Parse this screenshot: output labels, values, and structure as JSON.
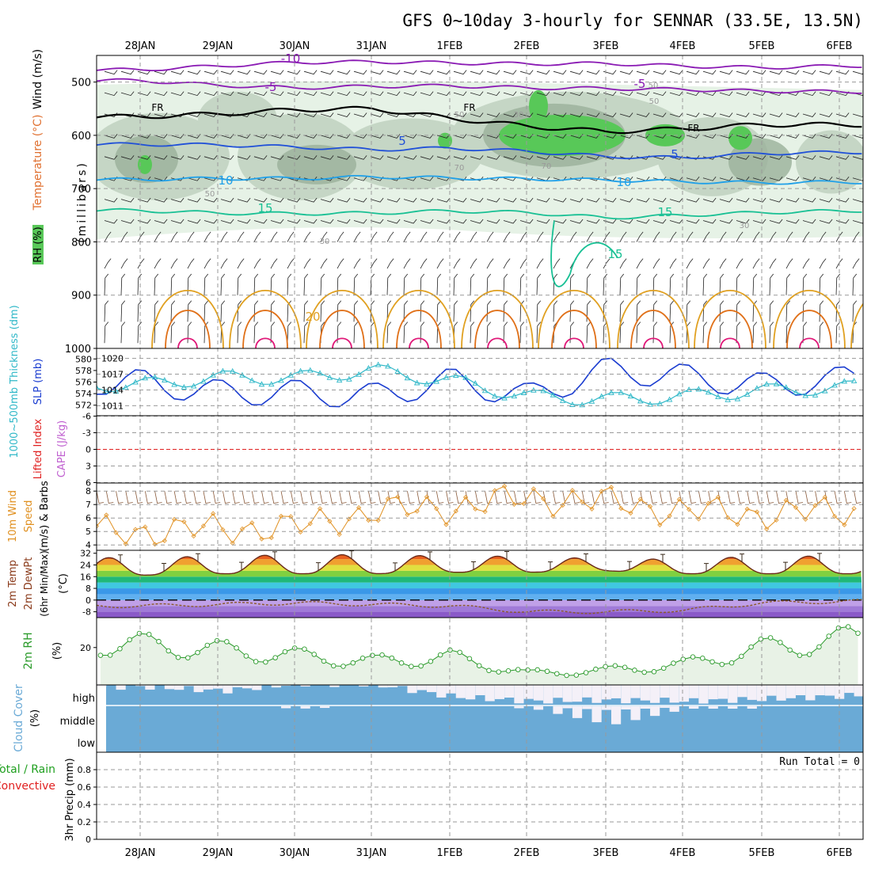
{
  "title": "GFS 0~10day 3-hourly for SENNAR (33.5E, 13.5N)",
  "dates": [
    "28JAN",
    "29JAN",
    "30JAN",
    "31JAN",
    "1FEB",
    "2FEB",
    "3FEB",
    "4FEB",
    "5FEB",
    "6FEB"
  ],
  "colors": {
    "frame": "#000000",
    "grid": "#9a9a9a",
    "rh_light": "#e6f2e6",
    "rh_mid": "#c5d6c5",
    "rh_dark": "#9ab09a",
    "rh_green": "#58c858",
    "wind_contour": "#8a1ab4",
    "temp_fr": "#000000",
    "temp_5": "#2050d8",
    "temp_10": "#20a0e8",
    "temp_15": "#18c094",
    "temp_20": "#e0a020",
    "temp_25": "#e07018",
    "temp_30": "#e01878",
    "slp": "#1a3cd0",
    "thickness": "#30b8c8",
    "lifted_index": "#e02020",
    "cape": "#c060d0",
    "wind_speed": "#e09020",
    "dewpt": "#8a5a2a",
    "rh2m": "#2a9a2a",
    "cloud": "#6aaad6",
    "precip_total": "#20a020",
    "precip_conv": "#e02020"
  },
  "panels": {
    "upper": {
      "ylabel_units": "(millibars)",
      "label_wind": "Wind (m/s)",
      "label_temp": "Temperature (°C)",
      "label_rh": "RH (%)",
      "yticks": [
        500,
        600,
        700,
        800,
        900,
        1000
      ],
      "contour_labels": [
        "-10",
        "-5",
        "-5",
        "FR",
        "FR",
        "FR",
        "5",
        "5",
        "10",
        "10",
        "15",
        "15",
        "15",
        "20",
        "30",
        "30",
        "30",
        "50",
        "50",
        "50",
        "50",
        "70",
        "70"
      ]
    },
    "slp": {
      "label_thick": "1000~500mb Thickness (dm)",
      "label_slp": "SLP (mb)",
      "yticks_left": [
        572,
        574,
        576,
        578,
        580
      ],
      "yticks_right": [
        1011,
        1014,
        1017,
        1020
      ]
    },
    "li": {
      "label_li": "Lifted Index",
      "label_cape": "CAPE (J/kg)",
      "yticks": [
        "-6",
        "-3",
        "0",
        "3",
        "6"
      ]
    },
    "wind10": {
      "label_1": "10m Wind",
      "label_2": "Speed",
      "label_3": "(m/s) & Barbs",
      "yticks": [
        4,
        5,
        6,
        7,
        8
      ]
    },
    "temp2m": {
      "label_1": "2m Temp",
      "label_2": "2m DewPt",
      "label_3": "(6hr Min/Max)",
      "unit": "(°C)",
      "yticks": [
        "32",
        "24",
        "16",
        "8",
        "0",
        "-8"
      ]
    },
    "rh2m": {
      "label": "2m RH",
      "unit": "(%)",
      "yticks": [
        "20"
      ]
    },
    "cloud": {
      "label": "Cloud Cover",
      "unit": "(%)",
      "levels": [
        "high",
        "middle",
        "low"
      ]
    },
    "precip": {
      "label_total": "Total / Rain",
      "label_conv": "Convective",
      "label_axis": "3hr Precip (mm)",
      "run_total": "Run Total = 0",
      "yticks": [
        "0",
        "0.2",
        "0.4",
        "0.6",
        "0.8"
      ]
    }
  },
  "chart_data": [
    {
      "type": "line",
      "title": "GFS 0~10day 3-hourly for SENNAR (33.5E, 13.5N)",
      "xlabel": "",
      "ylabel": "(millibars)",
      "categories": [
        "28JAN",
        "29JAN",
        "30JAN",
        "31JAN",
        "1FEB",
        "2FEB",
        "3FEB",
        "4FEB",
        "5FEB",
        "6FEB"
      ],
      "y_inverted": true,
      "ylim": [
        450,
        1000
      ],
      "series": [
        {
          "name": "-10",
          "values": [
            477,
            470,
            463,
            462,
            464,
            466,
            465,
            470,
            473,
            470
          ]
        },
        {
          "name": "-5",
          "values": [
            497,
            506,
            511,
            508,
            507,
            511,
            512,
            514,
            517,
            518
          ]
        },
        {
          "name": "FR",
          "values": [
            565,
            560,
            552,
            550,
            568,
            583,
            593,
            588,
            580,
            580
          ]
        },
        {
          "name": "5",
          "values": [
            617,
            618,
            622,
            627,
            624,
            630,
            640,
            642,
            634,
            632
          ]
        },
        {
          "name": "10",
          "values": [
            683,
            681,
            681,
            678,
            680,
            682,
            684,
            687,
            689,
            688
          ]
        },
        {
          "name": "15",
          "values": [
            741,
            746,
            747,
            746,
            742,
            745,
            755,
            750,
            745,
            742
          ]
        }
      ]
    },
    {
      "type": "line",
      "title": "",
      "xlabel": "",
      "ylabel": "SLP (mb)",
      "categories": [
        "28JAN",
        "29JAN",
        "30JAN",
        "31JAN",
        "1FEB",
        "2FEB",
        "3FEB",
        "4FEB",
        "5FEB",
        "6FEB"
      ],
      "ylim": [
        1011,
        1020
      ],
      "series": [
        {
          "name": "SLP (mb)",
          "values": [
            1015.5,
            1013.5,
            1013.5,
            1012.8,
            1015.8,
            1012.7,
            1017.8,
            1016.5,
            1014.8,
            1016.0
          ]
        },
        {
          "name": "1000~500mb Thickness (dm)",
          "values": [
            575.5,
            576.8,
            576.7,
            578.0,
            576.2,
            573.5,
            573.0,
            573.5,
            574.5,
            575.0
          ]
        }
      ]
    },
    {
      "type": "line",
      "title": "",
      "xlabel": "",
      "ylabel": "Lifted Index",
      "categories": [
        "28JAN",
        "29JAN",
        "30JAN",
        "31JAN",
        "1FEB",
        "2FEB",
        "3FEB",
        "4FEB",
        "5FEB",
        "6FEB"
      ],
      "ylim": [
        6,
        -6
      ],
      "series": [
        {
          "name": "CAPE (J/kg)",
          "values": [
            0,
            0,
            0,
            0,
            0,
            0,
            0,
            0,
            0,
            0
          ]
        }
      ]
    },
    {
      "type": "line",
      "title": "",
      "xlabel": "",
      "ylabel": "(m/s) & Barbs",
      "categories": [
        "28JAN",
        "29JAN",
        "30JAN",
        "31JAN",
        "1FEB",
        "2FEB",
        "3FEB",
        "4FEB",
        "5FEB",
        "6FEB"
      ],
      "ylim": [
        3.6,
        8.6
      ],
      "series": [
        {
          "name": "10m Wind Speed",
          "values": [
            5.0,
            5.2,
            5.3,
            6.5,
            6.8,
            7.5,
            7.2,
            6.5,
            6.3,
            6.5
          ]
        }
      ]
    },
    {
      "type": "area",
      "title": "",
      "xlabel": "",
      "ylabel": "(°C)",
      "categories": [
        "28JAN",
        "29JAN",
        "30JAN",
        "31JAN",
        "1FEB",
        "2FEB",
        "3FEB",
        "4FEB",
        "5FEB",
        "6FEB"
      ],
      "ylim": [
        -12,
        34
      ],
      "series": [
        {
          "name": "2m Temp max",
          "values": [
            29,
            30,
            31,
            31,
            30,
            30,
            28,
            28,
            30,
            30
          ]
        },
        {
          "name": "2m Temp min",
          "values": [
            17,
            18,
            18,
            18,
            19,
            19,
            20,
            18,
            18,
            18
          ]
        },
        {
          "name": "2m DewPt",
          "values": [
            -4,
            -3,
            -2,
            -3,
            -4,
            -8,
            -8,
            -7,
            -2,
            -1
          ]
        }
      ]
    },
    {
      "type": "area",
      "title": "",
      "xlabel": "",
      "ylabel": "(%)",
      "categories": [
        "28JAN",
        "29JAN",
        "30JAN",
        "31JAN",
        "1FEB",
        "2FEB",
        "3FEB",
        "4FEB",
        "5FEB",
        "6FEB"
      ],
      "ylim": [
        0,
        36
      ],
      "series": [
        {
          "name": "2m RH",
          "values": [
            28,
            24,
            20,
            16,
            19,
            8,
            10,
            14,
            25,
            31
          ]
        }
      ]
    },
    {
      "type": "bar",
      "title": "",
      "xlabel": "",
      "ylabel": "(%)",
      "categories": [
        "28JAN",
        "29JAN",
        "30JAN",
        "31JAN",
        "1FEB",
        "2FEB",
        "3FEB",
        "4FEB",
        "5FEB",
        "6FEB"
      ],
      "series": [
        {
          "name": "high",
          "values": [
            80,
            60,
            95,
            90,
            30,
            10,
            15,
            10,
            20,
            35
          ]
        },
        {
          "name": "middle",
          "values": [
            0,
            0,
            5,
            0,
            0,
            5,
            40,
            5,
            5,
            0
          ]
        },
        {
          "name": "low",
          "values": [
            0,
            0,
            0,
            0,
            0,
            0,
            0,
            0,
            0,
            0
          ]
        }
      ]
    },
    {
      "type": "bar",
      "title": "",
      "xlabel": "",
      "ylabel": "3hr Precip (mm)",
      "categories": [
        "28JAN",
        "29JAN",
        "30JAN",
        "31JAN",
        "1FEB",
        "2FEB",
        "3FEB",
        "4FEB",
        "5FEB",
        "6FEB"
      ],
      "ylim": [
        0,
        1
      ],
      "series": [
        {
          "name": "Total / Rain",
          "values": [
            0,
            0,
            0,
            0,
            0,
            0,
            0,
            0,
            0,
            0
          ]
        },
        {
          "name": "Convective",
          "values": [
            0,
            0,
            0,
            0,
            0,
            0,
            0,
            0,
            0,
            0
          ]
        }
      ]
    }
  ]
}
